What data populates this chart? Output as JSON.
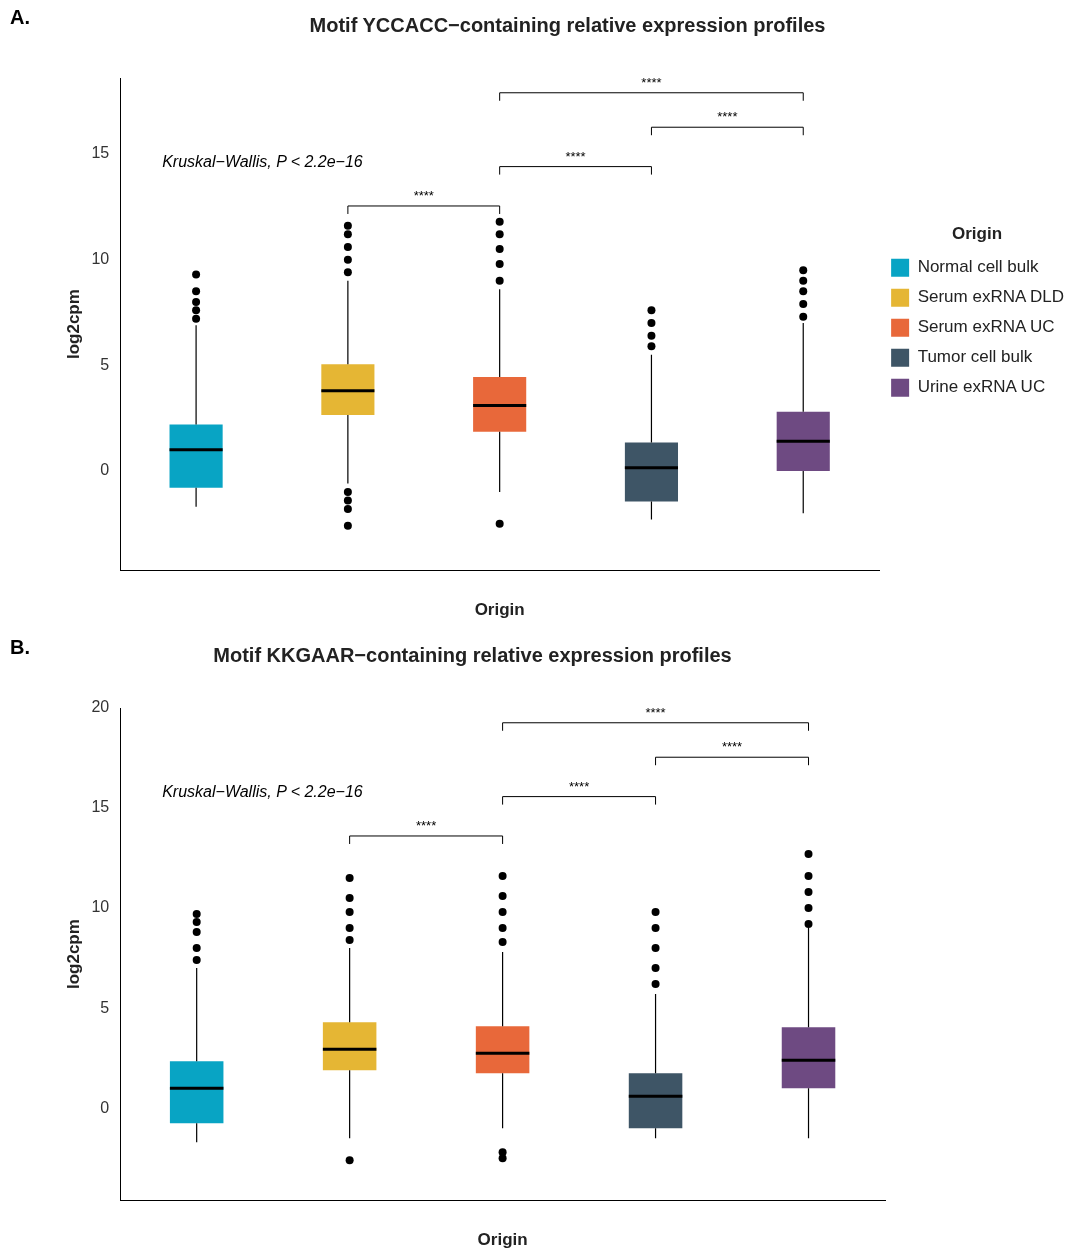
{
  "chart_data": [
    {
      "type": "box",
      "title": "Motif YCCACC−containing relative expression profiles",
      "xlabel": "Origin",
      "ylabel": "log2cpm",
      "legend_title": "Origin",
      "legend": "right",
      "grid": false,
      "categories": [
        null,
        null,
        null,
        null,
        null
      ],
      "ylim": [
        -4.7,
        18.6
      ],
      "yticks": [
        0,
        5,
        10,
        15
      ],
      "annotations": [
        "A.",
        "Kruskal−Wallis, P < 2.2e−16",
        "****",
        "****",
        "****",
        "****"
      ],
      "series": [
        {
          "name": "Normal cell bulk",
          "color": "#08a4c4",
          "boxes": [
            {
              "low": -1.7,
              "q1": -0.8,
              "median": 1.0,
              "q3": 2.2,
              "high": 6.9,
              "outliers": [
                7.2,
                7.6,
                8.0,
                8.5,
                9.3
              ]
            },
            null,
            null,
            null,
            null
          ]
        },
        {
          "name": "Serum exRNA DLD",
          "color": "#e5b634",
          "boxes": [
            null,
            {
              "low": -0.6,
              "q1": 2.65,
              "median": 3.8,
              "q3": 5.05,
              "high": 9.0,
              "outliers": [
                -2.6,
                -1.8,
                -1.4,
                -1.0,
                9.4,
                10.0,
                10.6,
                11.2,
                11.6
              ]
            },
            null,
            null,
            null
          ]
        },
        {
          "name": "Serum exRNA UC",
          "color": "#e8683a",
          "boxes": [
            null,
            null,
            {
              "low": -1.0,
              "q1": 1.85,
              "median": 3.1,
              "q3": 4.45,
              "high": 8.6,
              "outliers": [
                -2.5,
                9.0,
                9.8,
                10.5,
                11.2,
                11.8
              ]
            },
            null,
            null
          ]
        },
        {
          "name": "Tumor cell bulk",
          "color": "#3e5566",
          "boxes": [
            null,
            null,
            null,
            {
              "low": -2.3,
              "q1": -1.45,
              "median": 0.15,
              "q3": 1.35,
              "high": 5.5,
              "outliers": [
                5.9,
                6.4,
                7.0,
                7.6
              ]
            },
            null
          ]
        },
        {
          "name": "Urine exRNA UC",
          "color": "#6e4a82",
          "boxes": [
            null,
            null,
            null,
            null,
            {
              "low": -2.0,
              "q1": 0.0,
              "median": 1.4,
              "q3": 2.8,
              "high": 7.0,
              "outliers": [
                7.3,
                7.9,
                8.5,
                9.0,
                9.5
              ]
            }
          ]
        }
      ]
    },
    {
      "type": "box",
      "title": "Motif KKGAAR−containing relative expression profiles",
      "xlabel": "Origin",
      "ylabel": "log2cpm",
      "grid": false,
      "categories": [
        null,
        null,
        null,
        null,
        null
      ],
      "ylim": [
        -4.6,
        20
      ],
      "yticks": [
        0,
        5,
        10,
        15,
        20
      ],
      "annotations": [
        "B.",
        "Kruskal−Wallis, P < 2.2e−16",
        "****",
        "****",
        "****",
        "****"
      ],
      "series": [
        {
          "color": "#08a4c4",
          "boxes": [
            {
              "low": -1.7,
              "q1": -0.75,
              "median": 1.0,
              "q3": 2.35,
              "high": 7.0,
              "outliers": [
                7.4,
                8.0,
                8.8,
                9.3,
                9.7
              ]
            },
            null,
            null,
            null,
            null
          ]
        },
        {
          "color": "#e5b634",
          "boxes": [
            null,
            {
              "low": -1.5,
              "q1": 1.9,
              "median": 2.95,
              "q3": 4.3,
              "high": 8.0,
              "outliers": [
                -2.6,
                8.4,
                9.0,
                9.8,
                10.5,
                11.5
              ]
            },
            null,
            null,
            null
          ]
        },
        {
          "color": "#e8683a",
          "boxes": [
            null,
            null,
            {
              "low": -1.0,
              "q1": 1.75,
              "median": 2.75,
              "q3": 4.1,
              "high": 7.8,
              "outliers": [
                -2.5,
                -2.2,
                8.3,
                9.0,
                9.8,
                10.6,
                11.6
              ]
            },
            null,
            null
          ]
        },
        {
          "color": "#3e5566",
          "boxes": [
            null,
            null,
            null,
            {
              "low": -1.5,
              "q1": -1.0,
              "median": 0.6,
              "q3": 1.75,
              "high": 5.7,
              "outliers": [
                6.2,
                7.0,
                8.0,
                9.0,
                9.8
              ]
            },
            null
          ]
        },
        {
          "color": "#6e4a82",
          "boxes": [
            null,
            null,
            null,
            null,
            {
              "low": -1.5,
              "q1": 1.0,
              "median": 2.4,
              "q3": 4.05,
              "high": 9.0,
              "outliers": [
                9.2,
                10.0,
                10.8,
                11.6,
                12.7
              ]
            }
          ]
        }
      ]
    }
  ]
}
